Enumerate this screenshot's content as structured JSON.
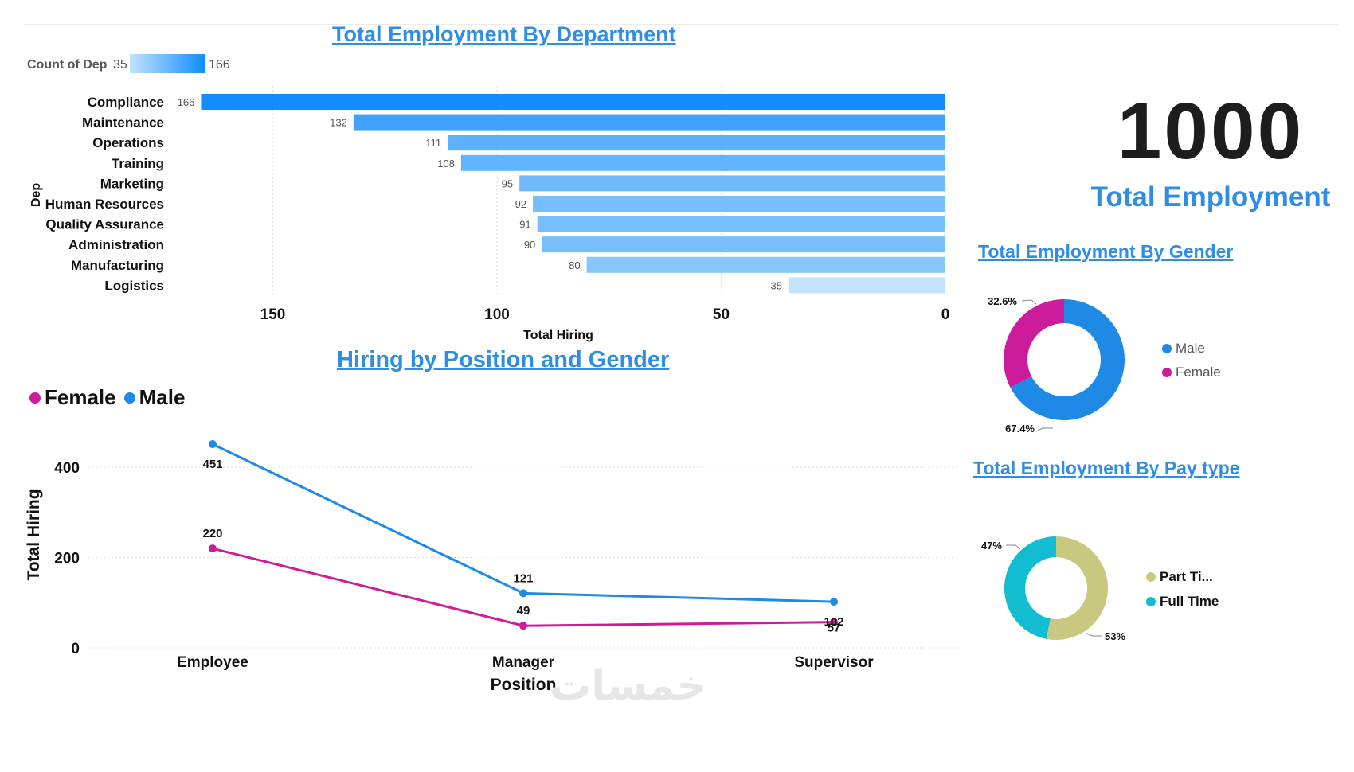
{
  "dept_chart": {
    "title": "Total Employment By Department",
    "gradient_legend": {
      "label": "Count of Dep",
      "min": "35",
      "max": "166"
    },
    "chart_data": {
      "type": "bar",
      "orientation": "horizontal-reversed",
      "categories": [
        "Compliance",
        "Maintenance",
        "Operations",
        "Training",
        "Marketing",
        "Human Resources",
        "Quality Assurance",
        "Administration",
        "Manufacturing",
        "Logistics"
      ],
      "values": [
        166,
        132,
        111,
        108,
        95,
        92,
        91,
        90,
        80,
        35
      ],
      "xlabel": "Total Hiring",
      "ylabel": "Dep",
      "xlim": [
        0,
        170
      ],
      "xticks": [
        "150",
        "100",
        "50",
        "0"
      ],
      "xtick_values": [
        150,
        100,
        50,
        0
      ],
      "grid": true
    },
    "colors": {
      "max": "#118dff",
      "min": "#c3e2fc"
    }
  },
  "kpi": {
    "value": "1000",
    "label": "Total Employment"
  },
  "position_chart": {
    "title": "Hiring by Position and Gender",
    "legend": [
      {
        "label": "Female",
        "color": "#cc1c9c"
      },
      {
        "label": "Male",
        "color": "#1f8ae6"
      }
    ],
    "chart_data": {
      "type": "line",
      "categories": [
        "Employee",
        "Manager",
        "Supervisor"
      ],
      "series": [
        {
          "name": "Female",
          "values": [
            220,
            49,
            57
          ],
          "labels": [
            "220",
            "49",
            "57"
          ],
          "color": "#cc1c9c"
        },
        {
          "name": "Male",
          "values": [
            451,
            121,
            102
          ],
          "labels": [
            "451",
            "121",
            "102"
          ],
          "color": "#1f8ae6"
        }
      ],
      "xlabel": "Position",
      "ylabel": "Total Hiring",
      "ylim": [
        0,
        500
      ],
      "yticks": [
        "0",
        "200",
        "400"
      ],
      "ytick_values": [
        0,
        200,
        400
      ],
      "grid": true
    }
  },
  "gender_chart": {
    "title": "Total Employment By Gender",
    "chart_data": {
      "type": "pie",
      "style": "donut",
      "slices": [
        {
          "name": "Male",
          "value": 67.4,
          "label": "67.4%",
          "color": "#1f8ae6"
        },
        {
          "name": "Female",
          "value": 32.6,
          "label": "32.6%",
          "color": "#cc1c9c"
        }
      ],
      "legend": "right"
    }
  },
  "pay_chart": {
    "title": "Total Employment By Pay type",
    "chart_data": {
      "type": "pie",
      "style": "donut",
      "slices": [
        {
          "name": "Part Ti...",
          "value": 53,
          "label": "53%",
          "color": "#c8c87e"
        },
        {
          "name": "Full Time",
          "value": 47,
          "label": "47%",
          "color": "#12bcd1"
        }
      ],
      "legend": "right"
    }
  },
  "watermark": "خمسات"
}
